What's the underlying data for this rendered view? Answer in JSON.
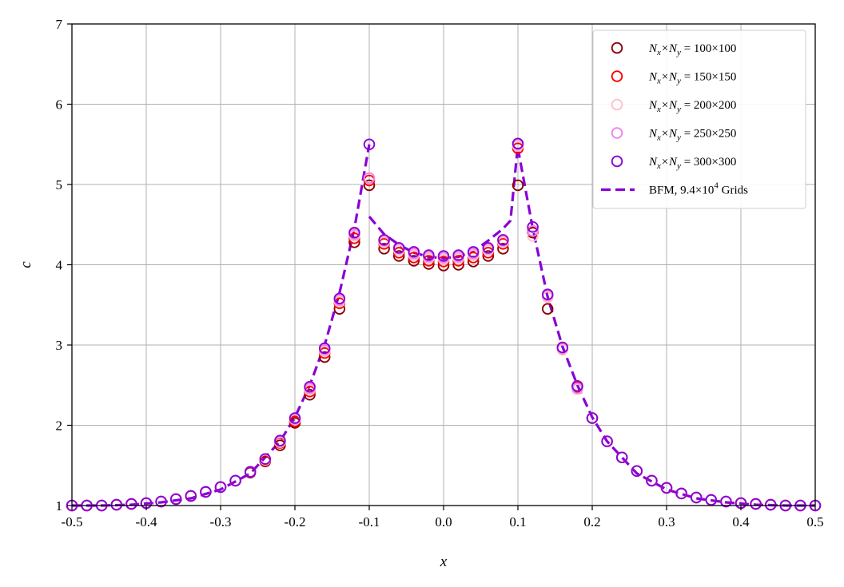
{
  "chart_data": {
    "type": "scatter",
    "title": "",
    "xlabel": "x",
    "ylabel": "c",
    "xlim": [
      -0.5,
      0.5
    ],
    "ylim": [
      1,
      7
    ],
    "xticks": [
      -0.5,
      -0.4,
      -0.3,
      -0.2,
      -0.1,
      0.0,
      0.1,
      0.2,
      0.3,
      0.4,
      0.5
    ],
    "xtick_labels": [
      "-0.5",
      "-0.4",
      "-0.3",
      "-0.2",
      "-0.1",
      "0.0",
      "0.1",
      "0.2",
      "0.3",
      "0.4",
      "0.5"
    ],
    "yticks": [
      1,
      2,
      3,
      4,
      5,
      6,
      7
    ],
    "ytick_labels": [
      "1",
      "2",
      "3",
      "4",
      "5",
      "6",
      "7"
    ],
    "grid": true,
    "legend_position": "top-right",
    "x": [
      -0.5,
      -0.48,
      -0.46,
      -0.44,
      -0.42,
      -0.4,
      -0.38,
      -0.36,
      -0.34,
      -0.32,
      -0.3,
      -0.28,
      -0.26,
      -0.24,
      -0.22,
      -0.2,
      -0.18,
      -0.16,
      -0.14,
      -0.12,
      -0.1,
      -0.08,
      -0.06,
      -0.04,
      -0.02,
      0.0,
      0.02,
      0.04,
      0.06,
      0.08,
      0.1,
      0.12,
      0.14,
      0.16,
      0.18,
      0.2,
      0.22,
      0.24,
      0.26,
      0.28,
      0.3,
      0.32,
      0.34,
      0.36,
      0.38,
      0.4,
      0.42,
      0.44,
      0.46,
      0.48,
      0.5
    ],
    "series": [
      {
        "name": "N_x×N_y = 100×100",
        "legend_main": "N",
        "legend_sub1": "x",
        "legend_mid": "×N",
        "legend_sub2": "y",
        "legend_rest": " = 100×100",
        "color": "#8b0000",
        "marker": "circle-open",
        "values": [
          1.0,
          1.0,
          1.0,
          1.01,
          1.02,
          1.03,
          1.05,
          1.08,
          1.12,
          1.17,
          1.23,
          1.31,
          1.41,
          1.55,
          1.75,
          2.03,
          2.38,
          2.85,
          3.45,
          4.28,
          4.99,
          4.2,
          4.11,
          4.05,
          4.01,
          3.99,
          4.0,
          4.04,
          4.11,
          4.2,
          4.99,
          4.4,
          3.45,
          2.95,
          2.48,
          2.09,
          1.8,
          1.6,
          1.43,
          1.31,
          1.22,
          1.15,
          1.1,
          1.07,
          1.05,
          1.03,
          1.02,
          1.01,
          1.0,
          1.0,
          1.0
        ]
      },
      {
        "name": "N_x×N_y = 150×150",
        "legend_main": "N",
        "legend_sub1": "x",
        "legend_mid": "×N",
        "legend_sub2": "y",
        "legend_rest": " = 150×150",
        "color": "#ff0000",
        "marker": "circle-open",
        "values": [
          1.0,
          1.0,
          1.0,
          1.01,
          1.02,
          1.03,
          1.05,
          1.08,
          1.12,
          1.17,
          1.23,
          1.31,
          1.42,
          1.56,
          1.78,
          2.05,
          2.42,
          2.9,
          3.52,
          4.33,
          5.05,
          4.26,
          4.15,
          4.09,
          4.05,
          4.04,
          4.05,
          4.09,
          4.15,
          4.26,
          5.45,
          4.42,
          3.6,
          2.96,
          2.48,
          2.09,
          1.8,
          1.6,
          1.43,
          1.31,
          1.22,
          1.15,
          1.1,
          1.07,
          1.05,
          1.03,
          1.02,
          1.01,
          1.0,
          1.0,
          1.0
        ]
      },
      {
        "name": "N_x×N_y = 200×200",
        "legend_main": "N",
        "legend_sub1": "x",
        "legend_mid": "×N",
        "legend_sub2": "y",
        "legend_rest": " = 200×200",
        "color": "#ffc0cb",
        "marker": "circle-open",
        "values": [
          1.0,
          1.0,
          1.0,
          1.01,
          1.02,
          1.03,
          1.05,
          1.08,
          1.12,
          1.17,
          1.23,
          1.31,
          1.42,
          1.57,
          1.79,
          2.07,
          2.44,
          2.92,
          3.54,
          4.36,
          5.08,
          4.28,
          4.18,
          4.12,
          4.08,
          4.07,
          4.08,
          4.12,
          4.18,
          4.28,
          5.48,
          4.36,
          3.6,
          2.94,
          2.45,
          2.09,
          1.8,
          1.6,
          1.43,
          1.31,
          1.22,
          1.15,
          1.1,
          1.07,
          1.05,
          1.03,
          1.02,
          1.01,
          1.0,
          1.0,
          1.0
        ]
      },
      {
        "name": "N_x×N_y = 250×250",
        "legend_main": "N",
        "legend_sub1": "x",
        "legend_mid": "×N",
        "legend_sub2": "y",
        "legend_rest": " = 250×250",
        "color": "#ee82ee",
        "marker": "circle-open",
        "values": [
          1.0,
          1.0,
          1.0,
          1.01,
          1.02,
          1.03,
          1.05,
          1.08,
          1.12,
          1.17,
          1.23,
          1.31,
          1.42,
          1.58,
          1.8,
          2.08,
          2.46,
          2.94,
          3.56,
          4.38,
          5.08,
          4.3,
          4.2,
          4.14,
          4.1,
          4.09,
          4.1,
          4.14,
          4.2,
          4.3,
          5.5,
          4.42,
          3.62,
          2.96,
          2.46,
          2.09,
          1.8,
          1.6,
          1.43,
          1.31,
          1.22,
          1.15,
          1.1,
          1.07,
          1.05,
          1.03,
          1.02,
          1.01,
          1.0,
          1.0,
          1.0
        ]
      },
      {
        "name": "N_x×N_y = 300×300",
        "legend_main": "N",
        "legend_sub1": "x",
        "legend_mid": "×N",
        "legend_sub2": "y",
        "legend_rest": " = 300×300",
        "color": "#8a00d4",
        "marker": "circle-open",
        "values": [
          1.0,
          1.0,
          1.0,
          1.01,
          1.02,
          1.03,
          1.05,
          1.08,
          1.12,
          1.17,
          1.23,
          1.31,
          1.42,
          1.58,
          1.81,
          2.09,
          2.48,
          2.96,
          3.58,
          4.4,
          5.5,
          4.31,
          4.21,
          4.16,
          4.12,
          4.11,
          4.12,
          4.16,
          4.21,
          4.31,
          5.51,
          4.47,
          3.63,
          2.97,
          2.49,
          2.09,
          1.8,
          1.6,
          1.43,
          1.31,
          1.22,
          1.15,
          1.1,
          1.07,
          1.05,
          1.03,
          1.02,
          1.01,
          1.0,
          1.0,
          1.0
        ]
      }
    ],
    "reference_line": {
      "name": "BFM, 9.4×10^4 Grids",
      "legend_main": "BFM, 9.4×10",
      "legend_sup": "4",
      "legend_rest": " Grids",
      "color": "#8a00d4",
      "style": "dashed",
      "x": [
        -0.5,
        -0.46,
        -0.42,
        -0.38,
        -0.34,
        -0.3,
        -0.26,
        -0.22,
        -0.2,
        -0.18,
        -0.16,
        -0.14,
        -0.12,
        -0.1,
        -0.1,
        -0.08,
        -0.06,
        -0.04,
        -0.02,
        0.0,
        0.02,
        0.04,
        0.06,
        0.08,
        0.09,
        0.1,
        0.1,
        0.12,
        0.14,
        0.16,
        0.18,
        0.2,
        0.22,
        0.26,
        0.3,
        0.34,
        0.38,
        0.42,
        0.46,
        0.5
      ],
      "y": [
        1.0,
        1.0,
        1.01,
        1.04,
        1.09,
        1.2,
        1.4,
        1.8,
        2.1,
        2.5,
        3.0,
        3.65,
        4.45,
        5.5,
        4.6,
        4.38,
        4.25,
        4.15,
        4.1,
        4.08,
        4.1,
        4.17,
        4.3,
        4.45,
        4.55,
        5.5,
        5.45,
        4.45,
        3.6,
        2.98,
        2.5,
        2.1,
        1.8,
        1.4,
        1.2,
        1.09,
        1.04,
        1.01,
        1.0,
        1.0
      ]
    }
  }
}
